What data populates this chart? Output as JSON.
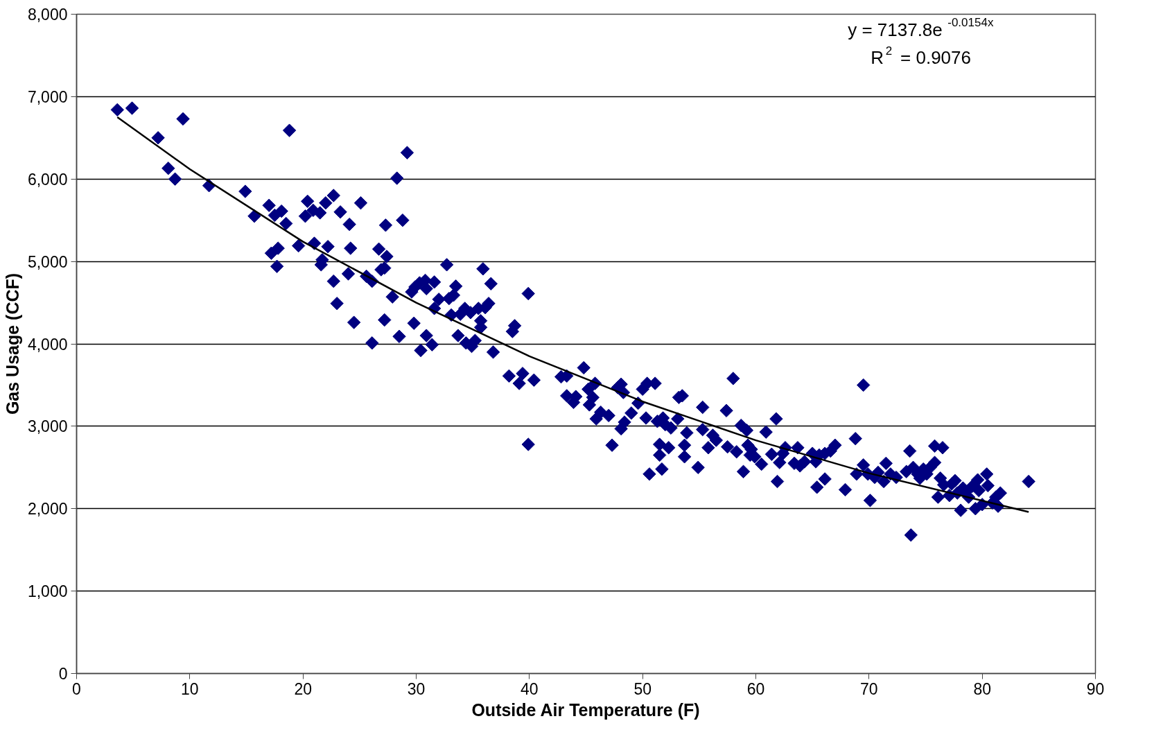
{
  "chart_data": {
    "type": "scatter",
    "xlabel": "Outside Air Temperature (F)",
    "ylabel": "Gas Usage (CCF)",
    "xlim": [
      0,
      90
    ],
    "ylim": [
      0,
      8000
    ],
    "xticks": [
      0,
      10,
      20,
      30,
      40,
      50,
      60,
      70,
      80,
      90
    ],
    "yticks": [
      0,
      {
        "value": 1000,
        "label": "1,000"
      },
      {
        "value": 2000,
        "label": "2,000"
      },
      {
        "value": 3000,
        "label": "3,000"
      },
      {
        "value": 4000,
        "label": "4,000"
      },
      {
        "value": 5000,
        "label": "5,000"
      },
      {
        "value": 6000,
        "label": "6,000"
      },
      {
        "value": 7000,
        "label": "7,000"
      },
      {
        "value": 8000,
        "label": "8,000"
      }
    ],
    "grid": "y",
    "marker": "diamond",
    "annotations": [
      "y = 7137.8e$^{-0.0154x}$",
      "R$^{2}$ = 0.9076"
    ],
    "series": [
      {
        "color": "#000080",
        "x": [
          3.6,
          4.9,
          9.4,
          7.2,
          8.1,
          8.7,
          11.7,
          14.9,
          15.7,
          17.0,
          18.8,
          17.5,
          18.1,
          18.5,
          17.2,
          17.8,
          17.7,
          19.6,
          20.4,
          20.2,
          20.9,
          21.5,
          22.0,
          22.7,
          21.0,
          22.2,
          21.7,
          21.6,
          23.3,
          24.1,
          25.1,
          24.2,
          24.0,
          22.7,
          23.0,
          24.5,
          25.6,
          26.1,
          26.1,
          26.7,
          26.9,
          27.2,
          27.4,
          27.3,
          27.2,
          27.9,
          28.3,
          28.8,
          29.2,
          28.5,
          29.6,
          29.8,
          29.9,
          30.3,
          30.8,
          30.4,
          30.9,
          30.9,
          31.4,
          31.6,
          31.6,
          32.0,
          32.7,
          32.9,
          33.1,
          33.3,
          33.5,
          33.7,
          33.9,
          34.3,
          34.4,
          34.8,
          34.9,
          35.2,
          35.5,
          35.7,
          35.9,
          36.1,
          36.4,
          36.6,
          36.8,
          35.7,
          38.5,
          38.7,
          38.2,
          39.1,
          39.4,
          39.9,
          40.4,
          39.9,
          42.8,
          43.3,
          43.3,
          43.9,
          44.1,
          44.8,
          45.2,
          45.3,
          45.6,
          45.8,
          45.9,
          46.3,
          47.0,
          47.3,
          47.8,
          48.1,
          48.3,
          48.1,
          48.4,
          49.0,
          49.6,
          50.0,
          50.4,
          50.3,
          50.6,
          51.1,
          51.3,
          51.5,
          51.5,
          51.7,
          51.8,
          52.0,
          52.3,
          52.5,
          53.1,
          53.2,
          53.5,
          53.7,
          53.7,
          53.9,
          54.9,
          55.3,
          55.3,
          55.8,
          56.2,
          56.5,
          57.4,
          57.5,
          58.0,
          58.3,
          58.7,
          58.9,
          59.2,
          59.3,
          59.5,
          59.6,
          59.9,
          60.5,
          60.9,
          61.4,
          61.8,
          61.9,
          62.1,
          62.4,
          62.6,
          63.4,
          63.7,
          63.9,
          64.3,
          65.0,
          65.3,
          65.4,
          65.6,
          66.1,
          66.1,
          66.6,
          67.0,
          67.9,
          68.8,
          68.9,
          69.5,
          69.5,
          69.9,
          70.1,
          70.5,
          70.8,
          71.3,
          71.5,
          71.9,
          72.4,
          73.3,
          73.6,
          73.7,
          73.9,
          74.3,
          74.5,
          74.8,
          75.1,
          75.4,
          75.8,
          75.8,
          76.1,
          76.3,
          76.5,
          76.6,
          77.1,
          77.3,
          77.6,
          77.8,
          78.1,
          78.3,
          78.5,
          78.8,
          79.1,
          79.4,
          79.6,
          79.7,
          80.0,
          80.4,
          80.5,
          80.9,
          81.2,
          81.4,
          81.6,
          84.1
        ],
        "values": [
          6840,
          6860,
          6730,
          6500,
          6130,
          6000,
          5920,
          5850,
          5550,
          5680,
          6590,
          5560,
          5610,
          5460,
          5100,
          5160,
          4940,
          5190,
          5730,
          5550,
          5620,
          5590,
          5710,
          5800,
          5220,
          5180,
          5020,
          4960,
          5600,
          5450,
          5710,
          5160,
          4850,
          4760,
          4490,
          4260,
          4820,
          4760,
          4010,
          5150,
          4900,
          4920,
          5060,
          5440,
          4290,
          4570,
          6010,
          5500,
          6320,
          4090,
          4630,
          4250,
          4690,
          4740,
          4770,
          3920,
          4100,
          4670,
          3990,
          4750,
          4430,
          4540,
          4960,
          4550,
          4350,
          4590,
          4700,
          4100,
          4360,
          4430,
          4010,
          4380,
          3970,
          4040,
          4430,
          4280,
          4910,
          4440,
          4490,
          4730,
          3900,
          4200,
          4150,
          4220,
          3610,
          3520,
          3640,
          4610,
          3560,
          2780,
          3600,
          3610,
          3370,
          3290,
          3360,
          3710,
          3450,
          3260,
          3350,
          3520,
          3090,
          3170,
          3130,
          2770,
          3470,
          3510,
          3410,
          2970,
          3050,
          3160,
          3280,
          3450,
          3520,
          3100,
          2420,
          3520,
          3060,
          2780,
          2650,
          2480,
          3100,
          3020,
          2740,
          2980,
          3090,
          3350,
          3370,
          2770,
          2630,
          2920,
          2500,
          3230,
          2960,
          2740,
          2890,
          2830,
          3190,
          2750,
          3580,
          2690,
          3010,
          2450,
          2950,
          2770,
          2650,
          2720,
          2630,
          2540,
          2930,
          2660,
          3090,
          2330,
          2560,
          2670,
          2740,
          2550,
          2740,
          2520,
          2570,
          2670,
          2570,
          2260,
          2650,
          2360,
          2670,
          2700,
          2770,
          2230,
          2850,
          2420,
          3500,
          2530,
          2420,
          2100,
          2380,
          2440,
          2330,
          2550,
          2420,
          2380,
          2450,
          2700,
          1680,
          2500,
          2420,
          2370,
          2480,
          2420,
          2500,
          2560,
          2760,
          2140,
          2370,
          2740,
          2290,
          2160,
          2300,
          2340,
          2190,
          1980,
          2250,
          2200,
          2140,
          2270,
          2000,
          2350,
          2220,
          2050,
          2420,
          2280,
          2070,
          2140,
          2030,
          2190,
          2330
        ]
      },
      {
        "type": "line",
        "marker": "none",
        "color": "#000000",
        "x": [
          3.6,
          10,
          20,
          30,
          40,
          50,
          60,
          70,
          84.1
        ],
        "values": [
          6750,
          6120,
          5240,
          4500,
          3850,
          3300,
          2830,
          2430,
          1960
        ]
      }
    ]
  }
}
